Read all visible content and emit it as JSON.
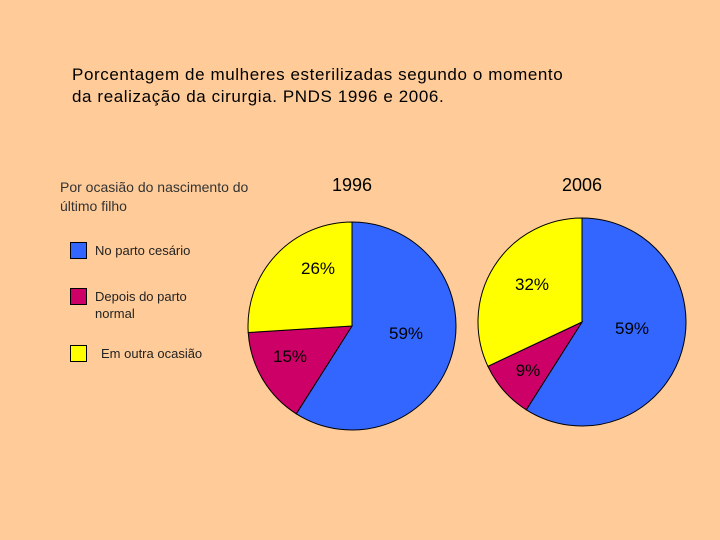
{
  "title": {
    "line1": "Porcentagem de mulheres esterilizadas segundo o momento",
    "line2": "da realização da cirurgia. PNDS 1996 e 2006."
  },
  "group_label": "Por ocasião do nascimento do último filho",
  "legend": [
    {
      "label": "No parto cesário",
      "color": "#3366FF"
    },
    {
      "label": "Depois do parto normal",
      "color": "#CC0066"
    },
    {
      "label": "Em outra ocasião",
      "color": "#FFFF00"
    }
  ],
  "chart_data": {
    "type": "pie",
    "categories": [
      "No parto cesário",
      "Depois do parto normal",
      "Em outra ocasião"
    ],
    "colors": [
      "#3366FF",
      "#CC0066",
      "#FFFF00"
    ],
    "pies": [
      {
        "name": "1996",
        "values": [
          59,
          15,
          26
        ],
        "labels": [
          "59%",
          "15%",
          "26%"
        ]
      },
      {
        "name": "2006",
        "values": [
          59,
          9,
          32
        ],
        "labels": [
          "59%",
          "9%",
          "32%"
        ]
      }
    ]
  }
}
